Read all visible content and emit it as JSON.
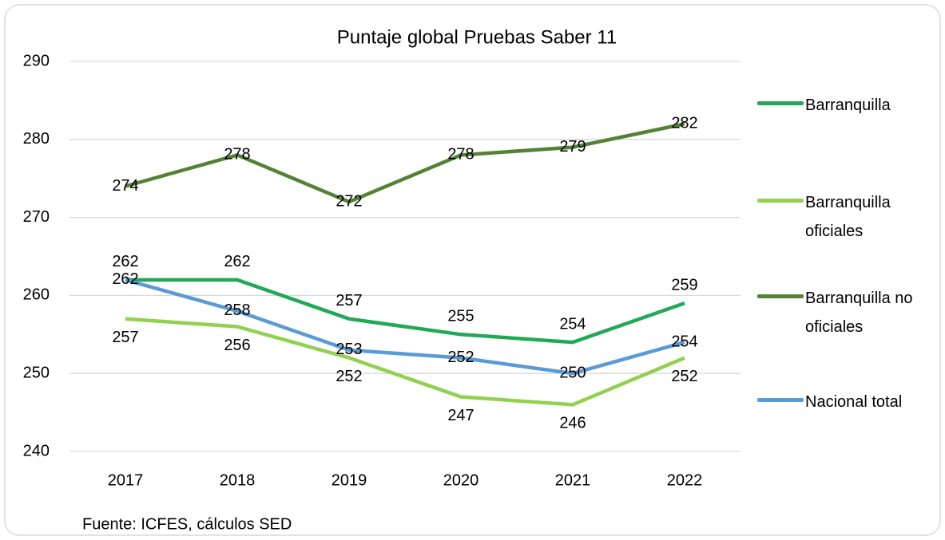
{
  "chart_data": {
    "type": "line",
    "title": "Puntaje global Pruebas Saber 11",
    "categories": [
      "2017",
      "2018",
      "2019",
      "2020",
      "2021",
      "2022"
    ],
    "series": [
      {
        "name": "Barranquilla",
        "color": "#21a956",
        "values": [
          262,
          262,
          257,
          255,
          254,
          259
        ]
      },
      {
        "name": "Barranquilla oficiales",
        "color": "#92d050",
        "values": [
          257,
          256,
          252,
          247,
          246,
          252
        ]
      },
      {
        "name": "Barranquilla no oficiales",
        "color": "#548235",
        "values": [
          274,
          278,
          272,
          278,
          279,
          282
        ]
      },
      {
        "name": "Nacional total",
        "color": "#5b9bd5",
        "values": [
          262,
          258,
          253,
          252,
          250,
          254
        ]
      }
    ],
    "ylim": [
      240,
      290
    ],
    "yticks": [
      240,
      250,
      260,
      270,
      280,
      290
    ],
    "grid": true,
    "legend": "right",
    "annotations": [
      "Fuente: ICFES, cálculos SED"
    ]
  }
}
